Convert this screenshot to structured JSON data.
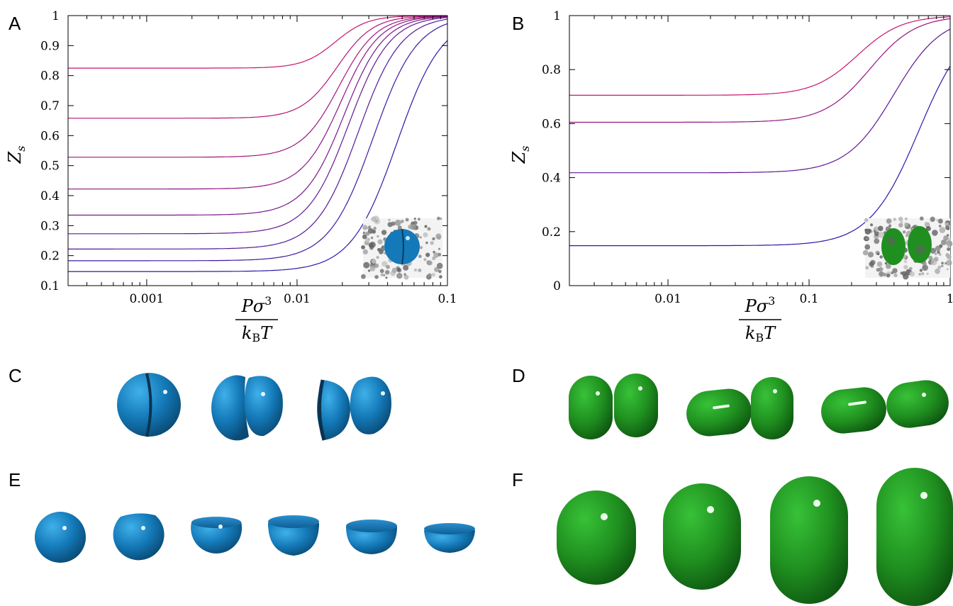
{
  "panels": {
    "a": "A",
    "b": "B",
    "c": "C",
    "d": "D",
    "e": "E",
    "f": "F"
  },
  "axis_text": {
    "y_label": "Z",
    "y_sub": "s",
    "x_num": "Pσ",
    "x_num_sup": "3",
    "x_den": "k",
    "x_den_sub": "B",
    "x_den_tail": "T"
  },
  "colors": {
    "sphere_blue": "#1479b8",
    "dumbbell_green": "#1f8f1f",
    "curve_start": "#c8146e",
    "curve_end": "#2a1aa8"
  },
  "chart_data": [
    {
      "id": "A",
      "type": "line",
      "xscale": "log",
      "xlim": [
        0.0003,
        0.1
      ],
      "ylim": [
        0.1,
        1
      ],
      "x_ticks": [
        "0.001",
        "0.01",
        "0.1"
      ],
      "y_ticks": [
        "0.1",
        "0.2",
        "0.3",
        "0.4",
        "0.5",
        "0.6",
        "0.7",
        "0.8",
        "0.9",
        "1"
      ],
      "grid": false,
      "series": [
        {
          "start": 0.825,
          "x_mid": 0.018,
          "steep": 4.2
        },
        {
          "start": 0.658,
          "x_mid": 0.0185,
          "steep": 3.8
        },
        {
          "start": 0.528,
          "x_mid": 0.019,
          "steep": 3.6
        },
        {
          "start": 0.422,
          "x_mid": 0.0195,
          "steep": 3.5
        },
        {
          "start": 0.335,
          "x_mid": 0.0205,
          "steep": 3.4
        },
        {
          "start": 0.273,
          "x_mid": 0.022,
          "steep": 3.3
        },
        {
          "start": 0.222,
          "x_mid": 0.0255,
          "steep": 3.2
        },
        {
          "start": 0.183,
          "x_mid": 0.032,
          "steep": 3.1
        },
        {
          "start": 0.147,
          "x_mid": 0.046,
          "steep": 3.0
        }
      ]
    },
    {
      "id": "B",
      "type": "line",
      "xscale": "log",
      "xlim": [
        0.002,
        1
      ],
      "ylim": [
        0,
        1
      ],
      "x_ticks": [
        "0.01",
        "0.1",
        "1"
      ],
      "y_ticks": [
        "0",
        "0.2",
        "0.4",
        "0.6",
        "0.8",
        "1"
      ],
      "grid": false,
      "series": [
        {
          "start": 0.705,
          "x_mid": 0.22,
          "steep": 2.9
        },
        {
          "start": 0.605,
          "x_mid": 0.27,
          "steep": 2.8
        },
        {
          "start": 0.418,
          "x_mid": 0.4,
          "steep": 2.7
        },
        {
          "start": 0.148,
          "x_mid": 0.6,
          "steep": 2.6
        }
      ]
    }
  ]
}
